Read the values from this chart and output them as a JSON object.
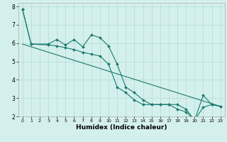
{
  "xlabel": "Humidex (Indice chaleur)",
  "background_color": "#d4f0ec",
  "grid_color": "#b8ddd8",
  "line_color": "#1a7a6e",
  "xlim": [
    -0.5,
    23.5
  ],
  "ylim": [
    2,
    8.2
  ],
  "x_ticks": [
    0,
    1,
    2,
    3,
    4,
    5,
    6,
    7,
    8,
    9,
    10,
    11,
    12,
    13,
    14,
    15,
    16,
    17,
    18,
    19,
    20,
    21,
    22,
    23
  ],
  "y_ticks": [
    2,
    3,
    4,
    5,
    6,
    7,
    8
  ],
  "series": [
    {
      "x": [
        0,
        1,
        3,
        4,
        5,
        6,
        7,
        8,
        9,
        10,
        11,
        12,
        13,
        14,
        15,
        16,
        17,
        18,
        19,
        20,
        21,
        22,
        23
      ],
      "y": [
        7.85,
        5.95,
        5.95,
        6.2,
        5.9,
        6.2,
        5.8,
        6.45,
        6.3,
        5.85,
        4.85,
        3.6,
        3.3,
        2.9,
        2.65,
        2.65,
        2.65,
        2.65,
        2.4,
        1.8,
        3.15,
        2.65,
        2.55
      ],
      "marker": true
    },
    {
      "x": [
        0,
        1,
        3,
        4,
        5,
        6,
        7,
        8,
        9,
        10,
        11,
        12,
        13,
        14,
        15,
        16,
        17,
        18,
        19,
        20,
        21,
        22,
        23
      ],
      "y": [
        7.85,
        5.95,
        5.9,
        5.85,
        5.75,
        5.65,
        5.5,
        5.4,
        5.3,
        4.85,
        3.6,
        3.3,
        2.9,
        2.65,
        2.65,
        2.65,
        2.65,
        2.4,
        2.25,
        1.8,
        2.5,
        2.65,
        2.55
      ],
      "marker": true
    },
    {
      "x": [
        0,
        23
      ],
      "y": [
        5.95,
        2.55
      ],
      "marker": false
    }
  ]
}
